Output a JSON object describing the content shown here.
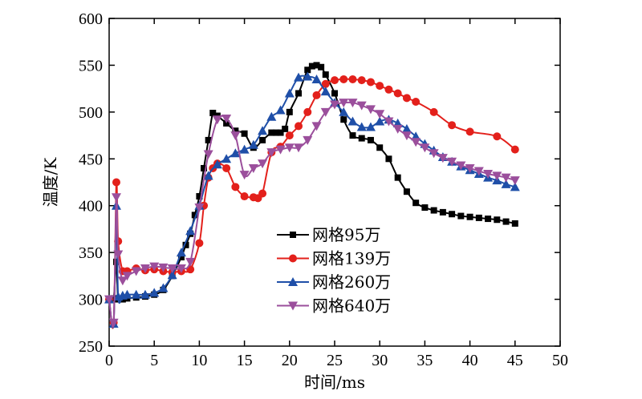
{
  "chart_data": {
    "type": "line",
    "xlabel": "时间/ms",
    "ylabel": "温度/K",
    "xlim": [
      0,
      50
    ],
    "ylim": [
      250,
      600
    ],
    "xticks": [
      0,
      5,
      10,
      15,
      20,
      25,
      30,
      35,
      40,
      45,
      50
    ],
    "yticks": [
      250,
      300,
      350,
      400,
      450,
      500,
      550,
      600
    ],
    "grid": false,
    "legend_position": "lower-center",
    "series": [
      {
        "name": "网格95万",
        "color": "#000000",
        "marker": "square",
        "x": [
          0,
          0.5,
          0.8,
          1,
          1.5,
          2,
          3,
          4,
          5,
          6,
          7,
          8,
          8.5,
          9,
          9.5,
          10,
          10.5,
          11,
          11.5,
          12,
          13,
          14,
          15,
          16,
          17,
          18,
          18.5,
          19,
          19.5,
          20,
          21,
          22,
          22.5,
          23,
          23.5,
          24,
          25,
          26,
          27,
          28,
          29,
          30,
          31,
          32,
          33,
          34,
          35,
          36,
          37,
          38,
          39,
          40,
          41,
          42,
          43,
          44,
          45
        ],
        "y": [
          300,
          301,
          340,
          300,
          300,
          301,
          302,
          303,
          305,
          310,
          325,
          345,
          358,
          370,
          390,
          410,
          440,
          470,
          499,
          496,
          488,
          480,
          477,
          462,
          470,
          478,
          478,
          478,
          482,
          500,
          520,
          545,
          549,
          550,
          548,
          540,
          520,
          492,
          475,
          472,
          470,
          462,
          450,
          430,
          415,
          403,
          398,
          395,
          393,
          391,
          389,
          388,
          387,
          386,
          385,
          383,
          381
        ]
      },
      {
        "name": "网格139万",
        "color": "#e3201b",
        "marker": "circle",
        "x": [
          0,
          0.5,
          0.8,
          1,
          1.5,
          2,
          3,
          4,
          5,
          6,
          7,
          8,
          9,
          10,
          10.5,
          11,
          11.5,
          12,
          13,
          14,
          15,
          16,
          16.5,
          17,
          18,
          19,
          20,
          21,
          22,
          23,
          24,
          25,
          26,
          27,
          28,
          29,
          30,
          31,
          32,
          33,
          34,
          36,
          38,
          40,
          43,
          45
        ],
        "y": [
          300,
          275,
          425,
          362,
          330,
          330,
          333,
          331,
          332,
          330,
          329,
          330,
          332,
          360,
          400,
          430,
          440,
          445,
          440,
          420,
          410,
          409,
          408,
          413,
          457,
          463,
          475,
          485,
          500,
          518,
          530,
          534,
          535,
          535,
          534,
          532,
          528,
          524,
          520,
          515,
          511,
          500,
          486,
          479,
          474,
          460
        ]
      },
      {
        "name": "网格260万",
        "color": "#1f4fa8",
        "marker": "triangle-up",
        "x": [
          0,
          0.5,
          0.8,
          1,
          1.5,
          2,
          3,
          4,
          5,
          6,
          7,
          8,
          9,
          10,
          11,
          12,
          13,
          14,
          15,
          16,
          17,
          18,
          19,
          20,
          21,
          22,
          23,
          24,
          25,
          26,
          27,
          28,
          29,
          30,
          31,
          32,
          33,
          34,
          35,
          36,
          37,
          38,
          39,
          40,
          41,
          42,
          43,
          44,
          45
        ],
        "y": [
          300,
          274,
          400,
          303,
          304,
          305,
          305,
          305,
          307,
          312,
          326,
          350,
          373,
          400,
          432,
          444,
          450,
          456,
          460,
          465,
          480,
          495,
          502,
          520,
          537,
          538,
          535,
          522,
          510,
          500,
          490,
          484,
          484,
          490,
          492,
          488,
          482,
          474,
          466,
          459,
          452,
          447,
          442,
          438,
          434,
          430,
          427,
          423,
          420
        ]
      },
      {
        "name": "网格640万",
        "color": "#9b4f9c",
        "marker": "triangle-down",
        "x": [
          0,
          0.5,
          0.8,
          1,
          1.5,
          2,
          3,
          4,
          5,
          6,
          7,
          8,
          9,
          10,
          11,
          12,
          13,
          14,
          15,
          16,
          17,
          18,
          19,
          20,
          21,
          22,
          23,
          24,
          25,
          26,
          27,
          28,
          29,
          30,
          31,
          32,
          33,
          34,
          35,
          36,
          37,
          38,
          39,
          40,
          41,
          42,
          43,
          44,
          45
        ],
        "y": [
          300,
          275,
          409,
          348,
          320,
          325,
          330,
          333,
          335,
          334,
          333,
          333,
          340,
          398,
          455,
          492,
          493,
          475,
          433,
          440,
          445,
          457,
          460,
          462,
          462,
          470,
          485,
          500,
          508,
          510,
          510,
          507,
          503,
          498,
          490,
          482,
          475,
          468,
          462,
          456,
          451,
          447,
          443,
          440,
          437,
          434,
          432,
          430,
          427
        ]
      }
    ]
  }
}
